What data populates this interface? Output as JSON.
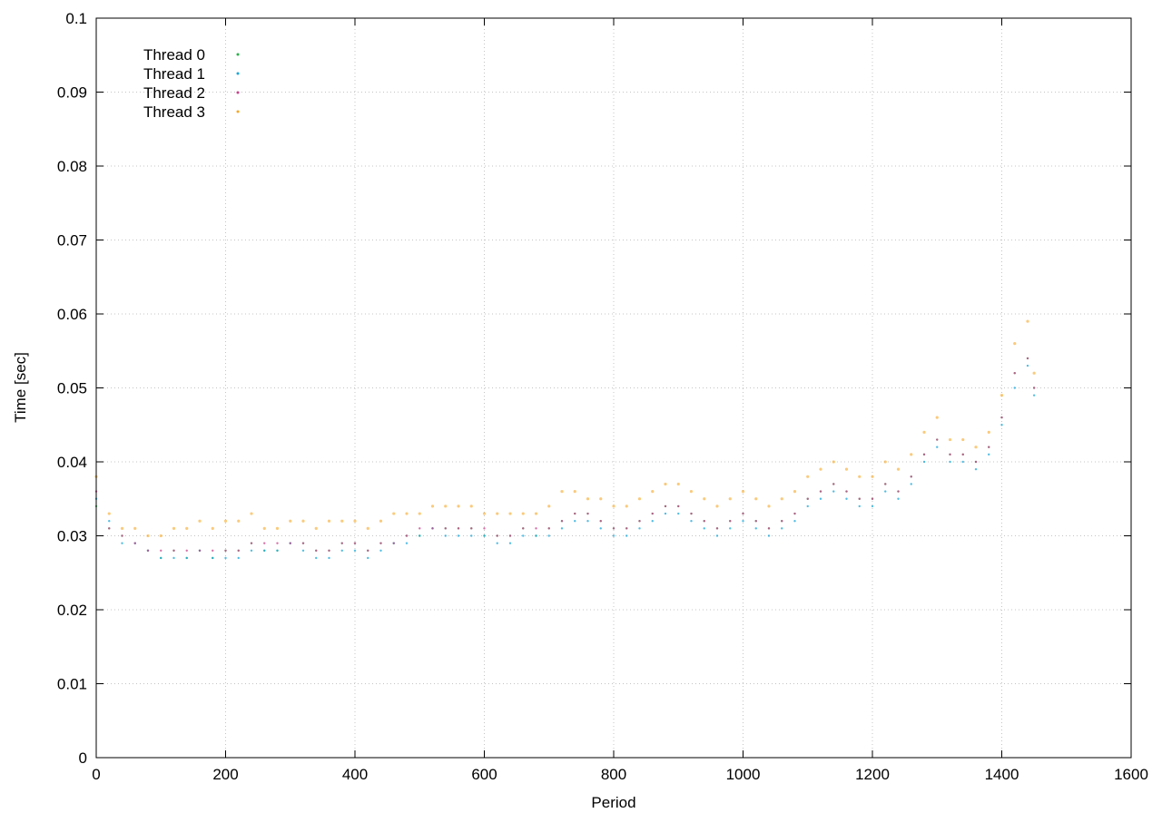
{
  "chart_data": {
    "type": "scatter",
    "title": "",
    "xlabel": "Period",
    "ylabel": "Time [sec]",
    "xlim": [
      0,
      1600
    ],
    "ylim": [
      0,
      0.1
    ],
    "x_ticks": [
      "0",
      "200",
      "400",
      "600",
      "800",
      "1000",
      "1200",
      "1400",
      "1600"
    ],
    "y_ticks": [
      "0",
      "0.01",
      "0.02",
      "0.03",
      "0.04",
      "0.05",
      "0.06",
      "0.07",
      "0.08",
      "0.09",
      "0.1"
    ],
    "grid": true,
    "legend_position": "top-left",
    "series": [
      {
        "name": "Thread 0",
        "color": "#2ab04a",
        "points": [
          [
            0,
            0.034
          ],
          [
            20,
            0.031
          ],
          [
            40,
            0.03
          ],
          [
            60,
            0.029
          ],
          [
            80,
            0.028
          ],
          [
            100,
            0.027
          ],
          [
            120,
            0.028
          ],
          [
            140,
            0.027
          ],
          [
            160,
            0.028
          ],
          [
            180,
            0.027
          ],
          [
            200,
            0.028
          ],
          [
            220,
            0.028
          ],
          [
            240,
            0.029
          ],
          [
            260,
            0.028
          ],
          [
            280,
            0.028
          ],
          [
            300,
            0.029
          ],
          [
            320,
            0.029
          ],
          [
            340,
            0.028
          ],
          [
            360,
            0.028
          ],
          [
            380,
            0.029
          ],
          [
            400,
            0.029
          ],
          [
            420,
            0.028
          ],
          [
            440,
            0.029
          ],
          [
            460,
            0.029
          ],
          [
            480,
            0.03
          ],
          [
            500,
            0.03
          ],
          [
            520,
            0.031
          ],
          [
            540,
            0.031
          ],
          [
            560,
            0.031
          ],
          [
            580,
            0.031
          ],
          [
            600,
            0.03
          ],
          [
            620,
            0.03
          ],
          [
            640,
            0.03
          ],
          [
            660,
            0.031
          ],
          [
            680,
            0.03
          ],
          [
            700,
            0.031
          ],
          [
            720,
            0.032
          ],
          [
            740,
            0.033
          ],
          [
            760,
            0.033
          ],
          [
            780,
            0.032
          ],
          [
            800,
            0.031
          ],
          [
            820,
            0.031
          ],
          [
            840,
            0.032
          ],
          [
            860,
            0.033
          ],
          [
            880,
            0.034
          ],
          [
            900,
            0.034
          ],
          [
            920,
            0.033
          ],
          [
            940,
            0.032
          ],
          [
            960,
            0.031
          ],
          [
            980,
            0.032
          ],
          [
            1000,
            0.033
          ],
          [
            1020,
            0.032
          ],
          [
            1040,
            0.031
          ],
          [
            1060,
            0.032
          ],
          [
            1080,
            0.033
          ],
          [
            1100,
            0.035
          ],
          [
            1120,
            0.036
          ],
          [
            1140,
            0.037
          ],
          [
            1160,
            0.036
          ],
          [
            1180,
            0.035
          ],
          [
            1200,
            0.035
          ],
          [
            1220,
            0.037
          ],
          [
            1240,
            0.036
          ],
          [
            1260,
            0.038
          ],
          [
            1280,
            0.041
          ],
          [
            1300,
            0.043
          ],
          [
            1320,
            0.041
          ],
          [
            1340,
            0.041
          ],
          [
            1360,
            0.04
          ],
          [
            1380,
            0.042
          ],
          [
            1400,
            0.046
          ],
          [
            1420,
            0.052
          ],
          [
            1440,
            0.054
          ],
          [
            1450,
            0.05
          ]
        ]
      },
      {
        "name": "Thread 1",
        "color": "#1aa7d9",
        "points": [
          [
            0,
            0.035
          ],
          [
            20,
            0.032
          ],
          [
            40,
            0.029
          ],
          [
            60,
            0.029
          ],
          [
            80,
            0.028
          ],
          [
            100,
            0.027
          ],
          [
            120,
            0.027
          ],
          [
            140,
            0.027
          ],
          [
            160,
            0.028
          ],
          [
            180,
            0.027
          ],
          [
            200,
            0.027
          ],
          [
            220,
            0.027
          ],
          [
            240,
            0.028
          ],
          [
            260,
            0.028
          ],
          [
            280,
            0.028
          ],
          [
            300,
            0.029
          ],
          [
            320,
            0.028
          ],
          [
            340,
            0.027
          ],
          [
            360,
            0.027
          ],
          [
            380,
            0.028
          ],
          [
            400,
            0.028
          ],
          [
            420,
            0.027
          ],
          [
            440,
            0.028
          ],
          [
            460,
            0.029
          ],
          [
            480,
            0.029
          ],
          [
            500,
            0.03
          ],
          [
            520,
            0.031
          ],
          [
            540,
            0.03
          ],
          [
            560,
            0.03
          ],
          [
            580,
            0.03
          ],
          [
            600,
            0.03
          ],
          [
            620,
            0.029
          ],
          [
            640,
            0.029
          ],
          [
            660,
            0.03
          ],
          [
            680,
            0.03
          ],
          [
            700,
            0.03
          ],
          [
            720,
            0.031
          ],
          [
            740,
            0.032
          ],
          [
            760,
            0.032
          ],
          [
            780,
            0.031
          ],
          [
            800,
            0.03
          ],
          [
            820,
            0.03
          ],
          [
            840,
            0.031
          ],
          [
            860,
            0.032
          ],
          [
            880,
            0.033
          ],
          [
            900,
            0.033
          ],
          [
            920,
            0.032
          ],
          [
            940,
            0.031
          ],
          [
            960,
            0.03
          ],
          [
            980,
            0.031
          ],
          [
            1000,
            0.032
          ],
          [
            1020,
            0.031
          ],
          [
            1040,
            0.03
          ],
          [
            1060,
            0.031
          ],
          [
            1080,
            0.032
          ],
          [
            1100,
            0.034
          ],
          [
            1120,
            0.035
          ],
          [
            1140,
            0.036
          ],
          [
            1160,
            0.035
          ],
          [
            1180,
            0.034
          ],
          [
            1200,
            0.034
          ],
          [
            1220,
            0.036
          ],
          [
            1240,
            0.035
          ],
          [
            1260,
            0.037
          ],
          [
            1280,
            0.04
          ],
          [
            1300,
            0.042
          ],
          [
            1320,
            0.04
          ],
          [
            1340,
            0.04
          ],
          [
            1360,
            0.039
          ],
          [
            1380,
            0.041
          ],
          [
            1400,
            0.045
          ],
          [
            1420,
            0.05
          ],
          [
            1440,
            0.053
          ],
          [
            1450,
            0.049
          ]
        ]
      },
      {
        "name": "Thread 2",
        "color": "#c8418a",
        "points": [
          [
            0,
            0.036
          ],
          [
            20,
            0.031
          ],
          [
            40,
            0.03
          ],
          [
            60,
            0.029
          ],
          [
            80,
            0.028
          ],
          [
            100,
            0.028
          ],
          [
            120,
            0.028
          ],
          [
            140,
            0.028
          ],
          [
            160,
            0.028
          ],
          [
            180,
            0.028
          ],
          [
            200,
            0.028
          ],
          [
            220,
            0.028
          ],
          [
            240,
            0.029
          ],
          [
            260,
            0.029
          ],
          [
            280,
            0.029
          ],
          [
            300,
            0.029
          ],
          [
            320,
            0.029
          ],
          [
            340,
            0.028
          ],
          [
            360,
            0.028
          ],
          [
            380,
            0.029
          ],
          [
            400,
            0.029
          ],
          [
            420,
            0.028
          ],
          [
            440,
            0.029
          ],
          [
            460,
            0.029
          ],
          [
            480,
            0.03
          ],
          [
            500,
            0.031
          ],
          [
            520,
            0.031
          ],
          [
            540,
            0.031
          ],
          [
            560,
            0.031
          ],
          [
            580,
            0.031
          ],
          [
            600,
            0.031
          ],
          [
            620,
            0.03
          ],
          [
            640,
            0.03
          ],
          [
            660,
            0.031
          ],
          [
            680,
            0.031
          ],
          [
            700,
            0.031
          ],
          [
            720,
            0.032
          ],
          [
            740,
            0.033
          ],
          [
            760,
            0.033
          ],
          [
            780,
            0.032
          ],
          [
            800,
            0.031
          ],
          [
            820,
            0.031
          ],
          [
            840,
            0.032
          ],
          [
            860,
            0.033
          ],
          [
            880,
            0.034
          ],
          [
            900,
            0.034
          ],
          [
            920,
            0.033
          ],
          [
            940,
            0.032
          ],
          [
            960,
            0.031
          ],
          [
            980,
            0.032
          ],
          [
            1000,
            0.033
          ],
          [
            1020,
            0.032
          ],
          [
            1040,
            0.031
          ],
          [
            1060,
            0.032
          ],
          [
            1080,
            0.033
          ],
          [
            1100,
            0.035
          ],
          [
            1120,
            0.036
          ],
          [
            1140,
            0.037
          ],
          [
            1160,
            0.036
          ],
          [
            1180,
            0.035
          ],
          [
            1200,
            0.035
          ],
          [
            1220,
            0.037
          ],
          [
            1240,
            0.036
          ],
          [
            1260,
            0.038
          ],
          [
            1280,
            0.041
          ],
          [
            1300,
            0.043
          ],
          [
            1320,
            0.041
          ],
          [
            1340,
            0.041
          ],
          [
            1360,
            0.04
          ],
          [
            1380,
            0.042
          ],
          [
            1400,
            0.046
          ],
          [
            1420,
            0.052
          ],
          [
            1440,
            0.054
          ],
          [
            1450,
            0.05
          ]
        ]
      },
      {
        "name": "Thread 3",
        "color": "#f6a623",
        "points": [
          [
            0,
            0.038
          ],
          [
            20,
            0.033
          ],
          [
            40,
            0.031
          ],
          [
            60,
            0.031
          ],
          [
            80,
            0.03
          ],
          [
            100,
            0.03
          ],
          [
            120,
            0.031
          ],
          [
            140,
            0.031
          ],
          [
            160,
            0.032
          ],
          [
            180,
            0.031
          ],
          [
            200,
            0.032
          ],
          [
            220,
            0.032
          ],
          [
            240,
            0.033
          ],
          [
            260,
            0.031
          ],
          [
            280,
            0.031
          ],
          [
            300,
            0.032
          ],
          [
            320,
            0.032
          ],
          [
            340,
            0.031
          ],
          [
            360,
            0.032
          ],
          [
            380,
            0.032
          ],
          [
            400,
            0.032
          ],
          [
            420,
            0.031
          ],
          [
            440,
            0.032
          ],
          [
            460,
            0.033
          ],
          [
            480,
            0.033
          ],
          [
            500,
            0.033
          ],
          [
            520,
            0.034
          ],
          [
            540,
            0.034
          ],
          [
            560,
            0.034
          ],
          [
            580,
            0.034
          ],
          [
            600,
            0.033
          ],
          [
            620,
            0.033
          ],
          [
            640,
            0.033
          ],
          [
            660,
            0.033
          ],
          [
            680,
            0.033
          ],
          [
            700,
            0.034
          ],
          [
            720,
            0.036
          ],
          [
            740,
            0.036
          ],
          [
            760,
            0.035
          ],
          [
            780,
            0.035
          ],
          [
            800,
            0.034
          ],
          [
            820,
            0.034
          ],
          [
            840,
            0.035
          ],
          [
            860,
            0.036
          ],
          [
            880,
            0.037
          ],
          [
            900,
            0.037
          ],
          [
            920,
            0.036
          ],
          [
            940,
            0.035
          ],
          [
            960,
            0.034
          ],
          [
            980,
            0.035
          ],
          [
            1000,
            0.036
          ],
          [
            1020,
            0.035
          ],
          [
            1040,
            0.034
          ],
          [
            1060,
            0.035
          ],
          [
            1080,
            0.036
          ],
          [
            1100,
            0.038
          ],
          [
            1120,
            0.039
          ],
          [
            1140,
            0.04
          ],
          [
            1160,
            0.039
          ],
          [
            1180,
            0.038
          ],
          [
            1200,
            0.038
          ],
          [
            1220,
            0.04
          ],
          [
            1240,
            0.039
          ],
          [
            1260,
            0.041
          ],
          [
            1280,
            0.044
          ],
          [
            1300,
            0.046
          ],
          [
            1320,
            0.043
          ],
          [
            1340,
            0.043
          ],
          [
            1360,
            0.042
          ],
          [
            1380,
            0.044
          ],
          [
            1400,
            0.049
          ],
          [
            1420,
            0.056
          ],
          [
            1440,
            0.059
          ],
          [
            1450,
            0.052
          ]
        ]
      }
    ]
  }
}
